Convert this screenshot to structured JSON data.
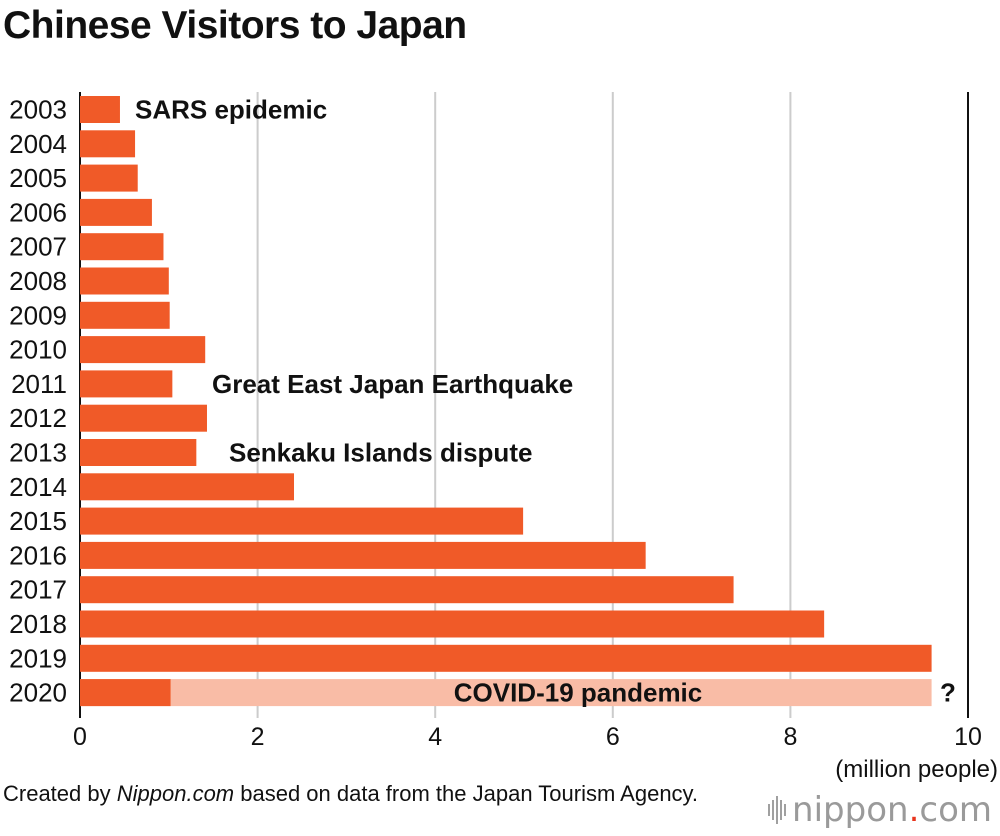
{
  "title": "Chinese Visitors to Japan",
  "chart_data": {
    "type": "bar",
    "orientation": "horizontal",
    "categories": [
      "2003",
      "2004",
      "2005",
      "2006",
      "2007",
      "2008",
      "2009",
      "2010",
      "2011",
      "2012",
      "2013",
      "2014",
      "2015",
      "2016",
      "2017",
      "2018",
      "2019",
      "2020"
    ],
    "values": [
      0.45,
      0.62,
      0.65,
      0.81,
      0.94,
      1.0,
      1.01,
      1.41,
      1.04,
      1.43,
      1.31,
      2.41,
      4.99,
      6.37,
      7.36,
      8.38,
      9.59,
      1.02
    ],
    "ghost_value_2020": 9.59,
    "xlim": [
      0,
      10
    ],
    "xticks": [
      "0",
      "2",
      "4",
      "6",
      "8",
      "10"
    ],
    "xlabel": "(million people)",
    "grid": true,
    "annotations": [
      {
        "category": "2003",
        "text": "SARS epidemic"
      },
      {
        "category": "2011",
        "text": "Great East Japan Earthquake"
      },
      {
        "category": "2013",
        "text": "Senkaku Islands dispute"
      },
      {
        "category": "2020",
        "text": "COVID-19 pandemic"
      },
      {
        "category": "2020",
        "text": "?"
      }
    ],
    "colors": {
      "bar": "#f05a28",
      "ghost": "#f9bca6",
      "grid": "#cccccc",
      "axis": "#111111"
    }
  },
  "source": {
    "prefix": "Created by ",
    "site": "Nippon.com",
    "suffix": " based on data from the Japan Tourism Agency."
  },
  "logo": {
    "name": "nippon",
    "dot": ".",
    "tld": "com"
  }
}
